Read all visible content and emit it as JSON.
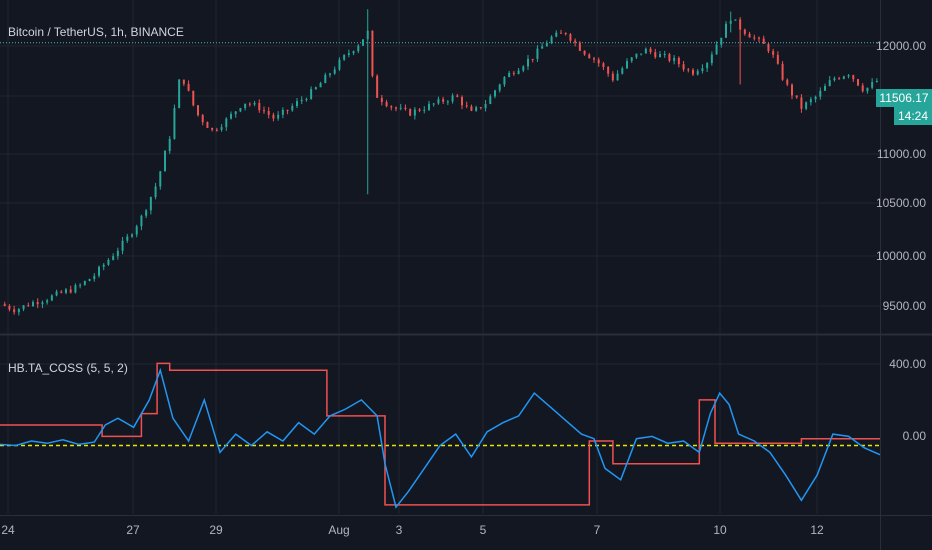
{
  "header": {
    "symbol_title": "Bitcoin / TetherUS, 1h, BINANCE",
    "indicator_title": "HB.TA_COSS (5, 5, 2)"
  },
  "price_tag": {
    "value": "11506.17",
    "countdown": "14:24"
  },
  "colors": {
    "background": "#131722",
    "grid": "#1f2430",
    "up": "#26a69a",
    "down": "#ef5350",
    "price_tag_bg": "#26a69a",
    "dotted_level": "#4fb3b3",
    "coss_line": "#2196f3",
    "coss_signal": "#f05050",
    "zero_line": "#e5e500"
  },
  "chart_data": [
    {
      "type": "candlestick",
      "title": "Bitcoin / TetherUS, 1h, BINANCE",
      "x_ticks": [
        "24",
        "27",
        "29",
        "Aug",
        "3",
        "5",
        "7",
        "10",
        "12"
      ],
      "y_ticks": [
        "12000.00",
        "11500.00",
        "11000.00",
        "10500.00",
        "10000.00",
        "9500.00"
      ],
      "ylim": [
        9300,
        12180
      ],
      "horizontal_level": 11810,
      "last_price": 11506.17,
      "anchors": [
        [
          0,
          9550
        ],
        [
          10,
          9500
        ],
        [
          20,
          9560
        ],
        [
          30,
          9600
        ],
        [
          40,
          9650
        ],
        [
          50,
          9700
        ],
        [
          60,
          9800
        ],
        [
          70,
          9950
        ],
        [
          80,
          10100
        ],
        [
          90,
          10300
        ],
        [
          100,
          10600
        ],
        [
          108,
          11000
        ],
        [
          115,
          11550
        ],
        [
          125,
          11200
        ],
        [
          135,
          11050
        ],
        [
          145,
          11150
        ],
        [
          155,
          11300
        ],
        [
          165,
          11250
        ],
        [
          175,
          11150
        ],
        [
          185,
          11250
        ],
        [
          200,
          11400
        ],
        [
          210,
          11550
        ],
        [
          220,
          11700
        ],
        [
          228,
          11800
        ],
        [
          234,
          11900
        ],
        [
          236,
          11550
        ],
        [
          240,
          11350
        ],
        [
          250,
          11250
        ],
        [
          260,
          11200
        ],
        [
          270,
          11250
        ],
        [
          280,
          11300
        ],
        [
          290,
          11350
        ],
        [
          300,
          11200
        ],
        [
          310,
          11300
        ],
        [
          320,
          11500
        ],
        [
          330,
          11600
        ],
        [
          340,
          11700
        ],
        [
          350,
          11850
        ],
        [
          360,
          11900
        ],
        [
          370,
          11750
        ],
        [
          380,
          11650
        ],
        [
          390,
          11500
        ],
        [
          400,
          11650
        ],
        [
          410,
          11750
        ],
        [
          420,
          11700
        ],
        [
          430,
          11650
        ],
        [
          440,
          11550
        ],
        [
          450,
          11650
        ],
        [
          460,
          11900
        ],
        [
          465,
          12030
        ],
        [
          470,
          11950
        ],
        [
          480,
          11850
        ],
        [
          490,
          11750
        ],
        [
          500,
          11450
        ],
        [
          510,
          11250
        ],
        [
          520,
          11350
        ],
        [
          530,
          11500
        ],
        [
          540,
          11550
        ],
        [
          550,
          11400
        ],
        [
          560,
          11500
        ]
      ],
      "wicks": [
        {
          "index": 234,
          "high": 12100,
          "low": 10500
        },
        {
          "index": 465,
          "high": 12080,
          "low": 11900
        },
        {
          "index": 470,
          "high": 11950,
          "low": 11450
        }
      ]
    },
    {
      "type": "line",
      "title": "HB.TA_COSS (5, 5, 2)",
      "y_ticks": [
        "400.00",
        "0.00"
      ],
      "ylim": [
        -300,
        480
      ],
      "zero_level": 0,
      "series": [
        {
          "values": [
            [
              0,
              5
            ],
            [
              10,
              0
            ],
            [
              20,
              20
            ],
            [
              30,
              10
            ],
            [
              40,
              25
            ],
            [
              50,
              5
            ],
            [
              60,
              15
            ],
            [
              67,
              90
            ],
            [
              75,
              120
            ],
            [
              85,
              80
            ],
            [
              95,
              200
            ],
            [
              102,
              330
            ],
            [
              110,
              120
            ],
            [
              120,
              20
            ],
            [
              130,
              200
            ],
            [
              140,
              -30
            ],
            [
              150,
              50
            ],
            [
              160,
              0
            ],
            [
              170,
              60
            ],
            [
              180,
              20
            ],
            [
              190,
              100
            ],
            [
              200,
              50
            ],
            [
              210,
              130
            ],
            [
              220,
              160
            ],
            [
              230,
              200
            ],
            [
              240,
              130
            ],
            [
              245,
              -80
            ],
            [
              252,
              -270
            ],
            [
              260,
              -200
            ],
            [
              270,
              -100
            ],
            [
              280,
              0
            ],
            [
              290,
              50
            ],
            [
              300,
              -50
            ],
            [
              310,
              60
            ],
            [
              320,
              100
            ],
            [
              330,
              130
            ],
            [
              340,
              230
            ],
            [
              350,
              170
            ],
            [
              360,
              110
            ],
            [
              370,
              50
            ],
            [
              378,
              30
            ],
            [
              385,
              -100
            ],
            [
              395,
              -150
            ],
            [
              405,
              30
            ],
            [
              415,
              40
            ],
            [
              425,
              10
            ],
            [
              435,
              20
            ],
            [
              445,
              -30
            ],
            [
              452,
              140
            ],
            [
              458,
              230
            ],
            [
              464,
              180
            ],
            [
              470,
              50
            ],
            [
              480,
              20
            ],
            [
              490,
              -30
            ],
            [
              500,
              -130
            ],
            [
              510,
              -240
            ],
            [
              520,
              -130
            ],
            [
              530,
              50
            ],
            [
              540,
              40
            ],
            [
              550,
              -10
            ],
            [
              560,
              -40
            ]
          ]
        },
        {
          "values": [
            [
              0,
              90
            ],
            [
              65,
              90
            ],
            [
              65,
              40
            ],
            [
              90,
              40
            ],
            [
              90,
              140
            ],
            [
              100,
              140
            ],
            [
              100,
              360
            ],
            [
              108,
              360
            ],
            [
              108,
              330
            ],
            [
              208,
              330
            ],
            [
              208,
              130
            ],
            [
              245,
              130
            ],
            [
              245,
              -260
            ],
            [
              375,
              -260
            ],
            [
              375,
              20
            ],
            [
              390,
              20
            ],
            [
              390,
              -80
            ],
            [
              445,
              -80
            ],
            [
              445,
              200
            ],
            [
              455,
              200
            ],
            [
              455,
              10
            ],
            [
              510,
              10
            ],
            [
              510,
              30
            ],
            [
              560,
              30
            ]
          ]
        }
      ]
    }
  ]
}
